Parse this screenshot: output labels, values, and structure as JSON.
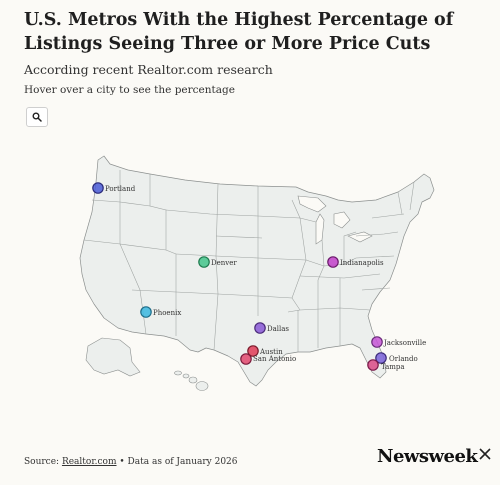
{
  "header": {
    "title": "U.S. Metros With the Highest Percentage of Listings Seeing Three or More Price Cuts",
    "subtitle": "According recent Realtor.com research",
    "hint": "Hover over a city to see the percentage"
  },
  "toolbar": {
    "search_icon": "magnifier-icon"
  },
  "map": {
    "region": "United States",
    "cities": [
      {
        "name": "Portland",
        "color": "#4a5bd6"
      },
      {
        "name": "Denver",
        "color": "#43c48a"
      },
      {
        "name": "Phoenix",
        "color": "#3bb7df"
      },
      {
        "name": "Dallas",
        "color": "#8a58d6"
      },
      {
        "name": "Austin",
        "color": "#e13b56"
      },
      {
        "name": "San Antonio",
        "color": "#e2466c"
      },
      {
        "name": "Indianapolis",
        "color": "#c23fc9"
      },
      {
        "name": "Jacksonville",
        "color": "#c655d6"
      },
      {
        "name": "Orlando",
        "color": "#7a62d9"
      },
      {
        "name": "Tampa",
        "color": "#d94a86"
      }
    ]
  },
  "footer": {
    "source_prefix": "Source: ",
    "source_link": "Realtor.com",
    "source_suffix": " • Data as of January 2026",
    "brand": "Newsweek",
    "close_icon": "close-icon"
  }
}
